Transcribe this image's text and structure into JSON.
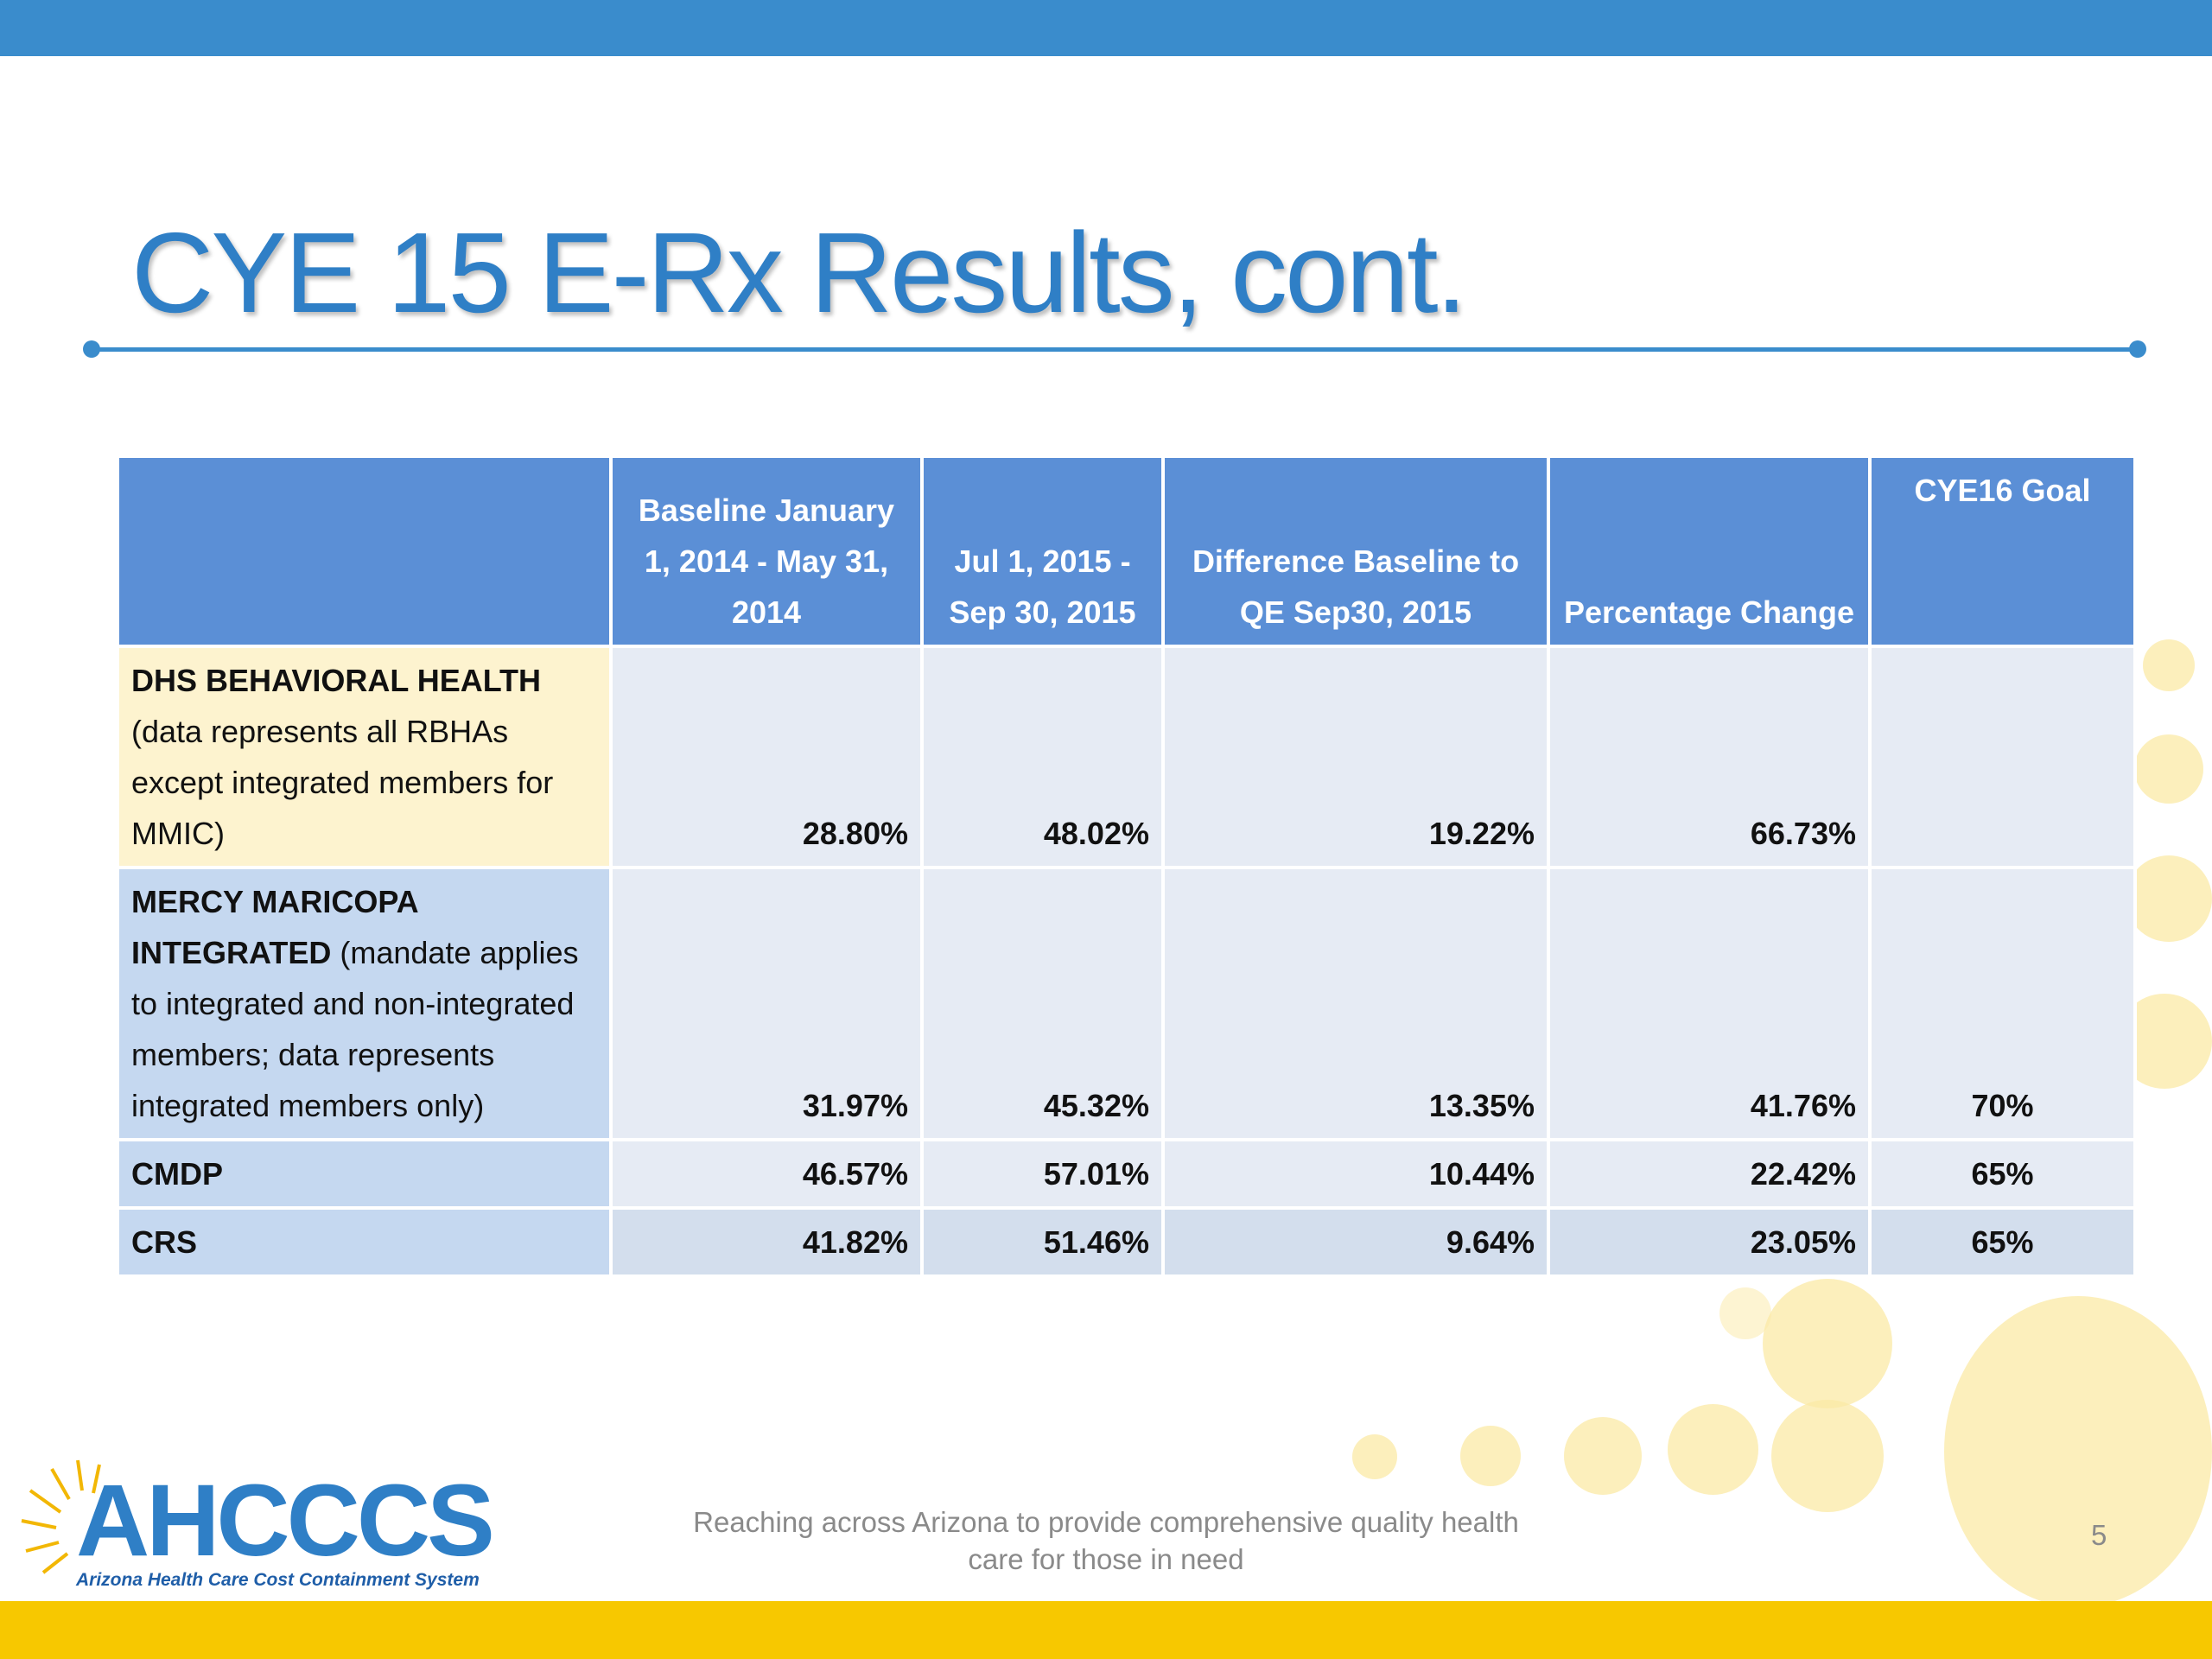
{
  "header": {
    "title": "CYE 15 E-Rx Results, cont."
  },
  "table": {
    "columns": [
      "Baseline January 1, 2014 - May 31, 2014",
      "Jul 1, 2015 - Sep 30, 2015",
      "Difference Baseline to QE Sep30, 2015",
      "Percentage Change",
      "CYE16 Goal"
    ],
    "rows": [
      {
        "label_bold": "DHS BEHAVIORAL HEALTH",
        "label_rest": "(data represents all RBHAs except integrated members for MMIC)",
        "cells": [
          "28.80%",
          "48.02%",
          "19.22%",
          "66.73%",
          null
        ]
      },
      {
        "label_bold": "MERCY MARICOPA INTEGRATED",
        "label_rest": "(mandate applies to integrated and non-integrated members; data represents integrated members only)",
        "cells": [
          "31.97%",
          "45.32%",
          "13.35%",
          "41.76%",
          "70%"
        ]
      },
      {
        "label_bold": "CMDP",
        "cells": [
          "46.57%",
          "57.01%",
          "10.44%",
          "22.42%",
          "65%"
        ]
      },
      {
        "label_bold": "CRS",
        "cells": [
          "41.82%",
          "51.46%",
          "9.64%",
          "23.05%",
          "65%"
        ]
      }
    ]
  },
  "footer": {
    "tagline": "Reaching across Arizona to provide comprehensive quality health care for those in need",
    "page_number": "5",
    "logo": "AHCCCS",
    "logo_subtitle": "Arizona Health Care Cost Containment System"
  }
}
